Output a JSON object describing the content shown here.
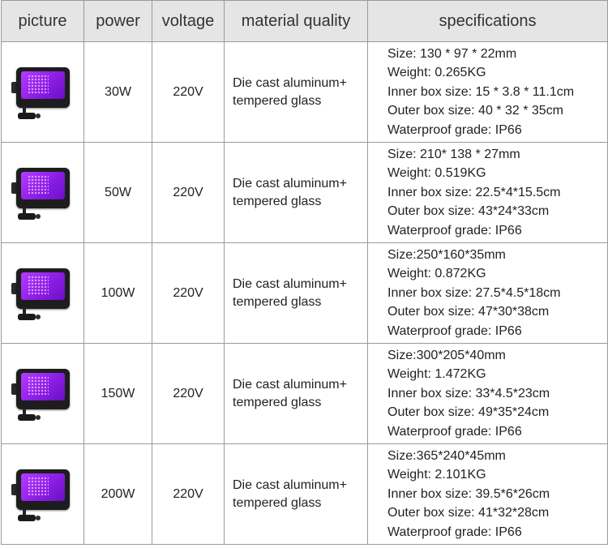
{
  "headers": {
    "picture": "picture",
    "power": "power",
    "voltage": "voltage",
    "material": "material quality",
    "specifications": "specifications"
  },
  "colors": {
    "header_bg": "#e5e5e5",
    "border": "#9a9a9a",
    "lamp_glow": "#9b2cf0",
    "lamp_body": "#1d1d1d"
  },
  "rows": [
    {
      "image": "purple-uv-flood-light",
      "power": "30W",
      "voltage": "220V",
      "material": [
        "Die cast aluminum+",
        "tempered glass"
      ],
      "specs": [
        "Size: 130 * 97 * 22mm",
        "Weight: 0.265KG",
        "Inner box size: 15 * 3.8 * 11.1cm",
        "Outer box size: 40 * 32 * 35cm",
        "Waterproof grade: IP66"
      ]
    },
    {
      "image": "purple-uv-flood-light",
      "power": "50W",
      "voltage": "220V",
      "material": [
        "Die cast aluminum+",
        "tempered glass"
      ],
      "specs": [
        "Size: 210* 138 * 27mm",
        "Weight: 0.519KG",
        "Inner box size: 22.5*4*15.5cm",
        "Outer box size: 43*24*33cm",
        "Waterproof grade: IP66"
      ]
    },
    {
      "image": "purple-uv-flood-light",
      "power": "100W",
      "voltage": "220V",
      "material": [
        "Die cast aluminum+",
        "tempered glass"
      ],
      "specs": [
        "Size:250*160*35mm",
        "Weight: 0.872KG",
        "Inner box size: 27.5*4.5*18cm",
        "Outer box size: 47*30*38cm",
        "Waterproof grade: IP66"
      ]
    },
    {
      "image": "purple-uv-flood-light",
      "power": "150W",
      "voltage": "220V",
      "material": [
        "Die cast aluminum+",
        "tempered glass"
      ],
      "specs": [
        "Size:300*205*40mm",
        "Weight: 1.472KG",
        "Inner box size: 33*4.5*23cm",
        "Outer box size: 49*35*24cm",
        "Waterproof grade: IP66"
      ]
    },
    {
      "image": "purple-uv-flood-light",
      "power": "200W",
      "voltage": "220V",
      "material": [
        "Die cast aluminum+",
        "tempered glass"
      ],
      "specs": [
        "Size:365*240*45mm",
        "Weight: 2.101KG",
        "Inner box size: 39.5*6*26cm",
        "Outer box size: 41*32*28cm",
        "Waterproof grade: IP66"
      ]
    }
  ]
}
